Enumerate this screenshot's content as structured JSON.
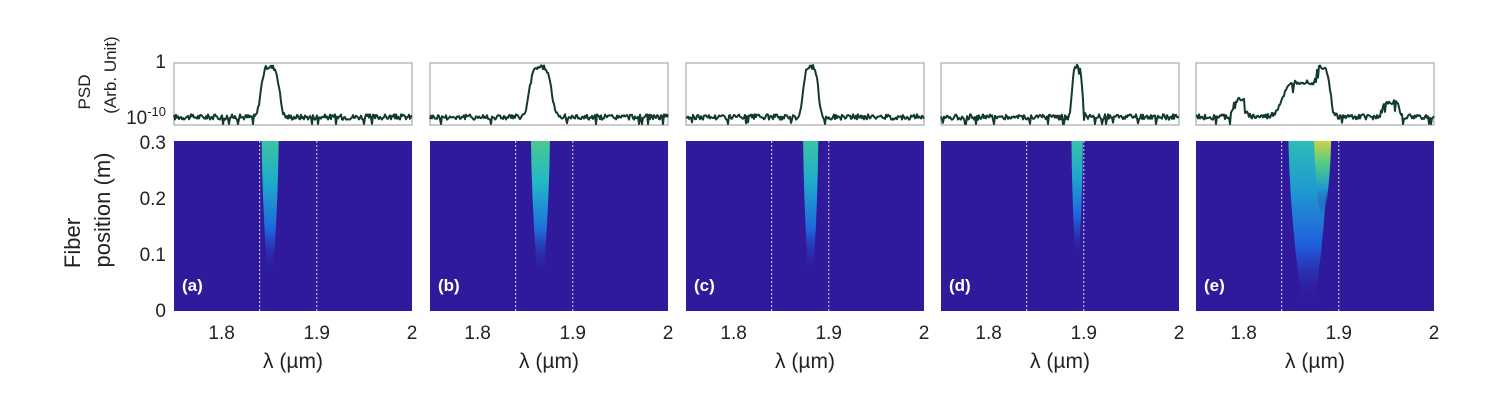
{
  "chart_data": {
    "type": "heatmap",
    "shared": {
      "xlabel": "λ (µm)",
      "x_ticks": [
        "1.8",
        "1.9",
        "2"
      ],
      "xlim": [
        1.75,
        2.0
      ],
      "psd_ylabel_line1": "PSD",
      "psd_ylabel_line2": "(Arb. Unit)",
      "psd_y_ticks": [
        "1",
        "10-10"
      ],
      "psd_ylim_exponent": [
        -10,
        0
      ],
      "map_ylabel_line1": "Fiber",
      "map_ylabel_line2": "position (m)",
      "map_y_ticks": [
        "0.3",
        "0.2",
        "0.1",
        "0"
      ],
      "map_ylim": [
        0,
        0.3
      ],
      "colormap": [
        "#2e1a9b",
        "#1f5fe0",
        "#1fb8c8",
        "#5ad07a",
        "#e8d23a"
      ]
    },
    "panels": [
      {
        "label": "(a)",
        "guide_lines": [
          1.84,
          1.9
        ],
        "psd_peaks": [
          {
            "center": 1.851,
            "width": 0.011,
            "log_height": 0
          }
        ],
        "psd_baseline": -10,
        "map_blobs": [
          {
            "center": 1.851,
            "width": 0.009,
            "z_start": 0.06,
            "peak": 0.62
          }
        ]
      },
      {
        "label": "(b)",
        "guide_lines": [
          1.84,
          1.9
        ],
        "psd_peaks": [
          {
            "center": 1.866,
            "width": 0.013,
            "log_height": 0
          }
        ],
        "psd_baseline": -10,
        "map_blobs": [
          {
            "center": 1.866,
            "width": 0.01,
            "z_start": 0.06,
            "peak": 0.68
          }
        ]
      },
      {
        "label": "(c)",
        "guide_lines": [
          1.84,
          1.9
        ],
        "psd_peaks": [
          {
            "center": 1.881,
            "width": 0.009,
            "log_height": 0
          }
        ],
        "psd_baseline": -10,
        "map_blobs": [
          {
            "center": 1.881,
            "width": 0.008,
            "z_start": 0.06,
            "peak": 0.62
          }
        ]
      },
      {
        "label": "(d)",
        "guide_lines": [
          1.84,
          1.9
        ],
        "psd_peaks": [
          {
            "center": 1.893,
            "width": 0.006,
            "log_height": 0
          }
        ],
        "psd_baseline": -10,
        "map_blobs": [
          {
            "center": 1.893,
            "width": 0.006,
            "z_start": 0.09,
            "peak": 0.6
          }
        ]
      },
      {
        "label": "(e)",
        "guide_lines": [
          1.84,
          1.9
        ],
        "psd_peaks": [
          {
            "center": 1.863,
            "width": 0.025,
            "log_height": -3
          },
          {
            "center": 1.882,
            "width": 0.01,
            "log_height": 0
          },
          {
            "center": 1.796,
            "width": 0.008,
            "log_height": -6.5
          },
          {
            "center": 1.955,
            "width": 0.01,
            "log_height": -7
          }
        ],
        "psd_baseline": -10,
        "map_blobs": [
          {
            "center": 1.868,
            "width": 0.021,
            "z_start": 0.01,
            "peak": 0.55
          },
          {
            "center": 1.883,
            "width": 0.009,
            "z_start": 0.17,
            "peak": 0.95
          }
        ]
      }
    ]
  }
}
